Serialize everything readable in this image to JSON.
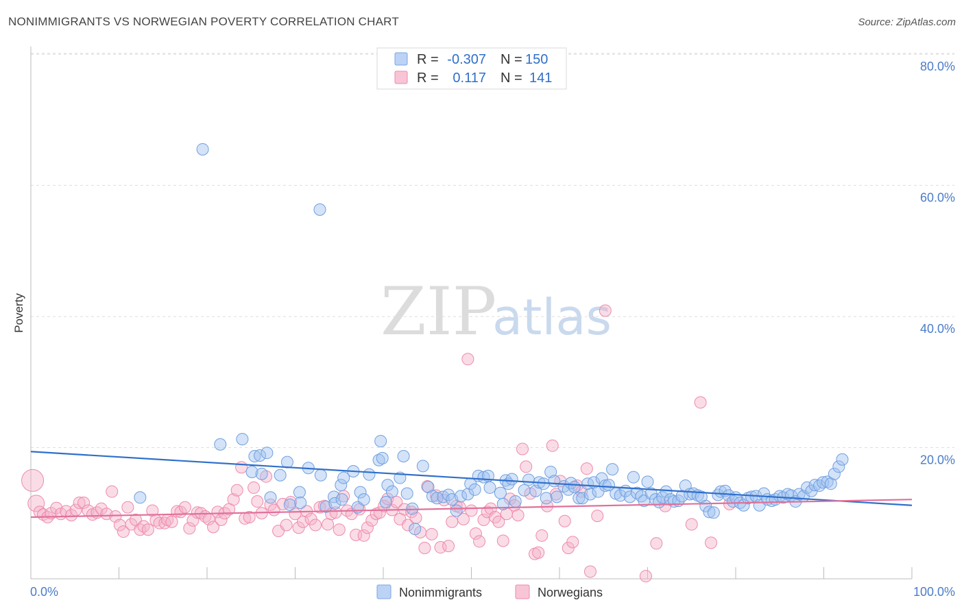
{
  "title": "NONIMMIGRANTS VS NORWEGIAN POVERTY CORRELATION CHART",
  "source": "Source: ZipAtlas.com",
  "watermark": {
    "zip": "ZIP",
    "atlas": "atlas"
  },
  "chart_data": {
    "type": "scatter",
    "xlabel": "",
    "ylabel": "Poverty",
    "xlim": [
      0,
      100
    ],
    "ylim": [
      0,
      82
    ],
    "x_tick_labels": [
      "0.0%",
      "100.0%"
    ],
    "y_ticks": [
      20,
      40,
      60,
      80
    ],
    "y_tick_labels": [
      "20.0%",
      "40.0%",
      "60.0%",
      "80.0%"
    ],
    "grid": true,
    "legend_placement": "top-center",
    "colors": {
      "Nonimmigrants": "#6f9fe0",
      "Norwegians": "#ee8aaa",
      "trend_blue": "#2f6fca",
      "trend_pink": "#e0709a"
    },
    "legend": [
      {
        "r_label": "R =",
        "r": "-0.307",
        "n_label": "N =",
        "n": "150"
      },
      {
        "r_label": "R =",
        "r": "0.117",
        "n_label": "N =",
        "n": "141"
      }
    ],
    "series": [
      {
        "name": "Nonimmigrants",
        "trend": [
          [
            0,
            19.4
          ],
          [
            100,
            11.2
          ]
        ],
        "points": [
          [
            19.5,
            65.5
          ],
          [
            32.8,
            56.3
          ],
          [
            12.4,
            12.4
          ],
          [
            21.5,
            20.5
          ],
          [
            24.0,
            21.3
          ],
          [
            25.1,
            16.3
          ],
          [
            25.4,
            18.7
          ],
          [
            26.0,
            18.8
          ],
          [
            26.2,
            16.0
          ],
          [
            26.8,
            19.2
          ],
          [
            27.2,
            12.4
          ],
          [
            28.3,
            15.8
          ],
          [
            29.1,
            17.8
          ],
          [
            29.4,
            11.3
          ],
          [
            30.5,
            13.2
          ],
          [
            30.6,
            11.6
          ],
          [
            31.5,
            16.9
          ],
          [
            32.9,
            15.8
          ],
          [
            33.5,
            11.0
          ],
          [
            34.4,
            12.5
          ],
          [
            34.5,
            11.5
          ],
          [
            35.2,
            14.3
          ],
          [
            35.5,
            15.4
          ],
          [
            35.3,
            12.1
          ],
          [
            36.6,
            16.4
          ],
          [
            37.1,
            10.9
          ],
          [
            37.4,
            13.2
          ],
          [
            37.8,
            12.1
          ],
          [
            38.4,
            15.9
          ],
          [
            39.7,
            21.0
          ],
          [
            39.5,
            18.1
          ],
          [
            39.9,
            18.4
          ],
          [
            40.5,
            14.3
          ],
          [
            40.3,
            11.7
          ],
          [
            41.0,
            13.3
          ],
          [
            41.9,
            15.4
          ],
          [
            42.3,
            18.7
          ],
          [
            42.7,
            13.0
          ],
          [
            43.3,
            10.7
          ],
          [
            43.6,
            7.6
          ],
          [
            44.5,
            17.2
          ],
          [
            45.1,
            14.0
          ],
          [
            45.6,
            12.6
          ],
          [
            46.1,
            12.3
          ],
          [
            46.8,
            12.5
          ],
          [
            47.4,
            12.8
          ],
          [
            47.8,
            12.1
          ],
          [
            48.3,
            10.4
          ],
          [
            48.8,
            12.6
          ],
          [
            49.6,
            12.9
          ],
          [
            49.9,
            14.5
          ],
          [
            50.4,
            13.6
          ],
          [
            50.8,
            15.7
          ],
          [
            51.4,
            15.5
          ],
          [
            51.9,
            15.7
          ],
          [
            52.1,
            13.9
          ],
          [
            53.3,
            13.1
          ],
          [
            53.6,
            11.4
          ],
          [
            53.9,
            15.0
          ],
          [
            54.2,
            14.5
          ],
          [
            54.6,
            15.2
          ],
          [
            55.0,
            11.8
          ],
          [
            56.0,
            13.5
          ],
          [
            56.5,
            15.1
          ],
          [
            57.3,
            13.4
          ],
          [
            57.7,
            14.7
          ],
          [
            58.2,
            14.5
          ],
          [
            58.5,
            12.3
          ],
          [
            59.0,
            16.3
          ],
          [
            59.4,
            14.9
          ],
          [
            59.7,
            12.5
          ],
          [
            60.5,
            14.1
          ],
          [
            61.0,
            13.6
          ],
          [
            61.3,
            14.6
          ],
          [
            61.7,
            14.0
          ],
          [
            62.2,
            12.3
          ],
          [
            62.6,
            12.3
          ],
          [
            63.2,
            14.5
          ],
          [
            63.5,
            12.9
          ],
          [
            63.9,
            14.7
          ],
          [
            64.4,
            13.3
          ],
          [
            64.8,
            15.3
          ],
          [
            65.2,
            14.2
          ],
          [
            65.6,
            14.3
          ],
          [
            66.0,
            16.7
          ],
          [
            66.4,
            13.0
          ],
          [
            66.9,
            12.7
          ],
          [
            67.5,
            13.4
          ],
          [
            68.0,
            12.5
          ],
          [
            68.4,
            15.5
          ],
          [
            68.8,
            13.1
          ],
          [
            69.3,
            12.6
          ],
          [
            69.6,
            11.9
          ],
          [
            70.0,
            14.8
          ],
          [
            70.4,
            13.0
          ],
          [
            70.9,
            12.1
          ],
          [
            71.3,
            11.7
          ],
          [
            71.7,
            12.4
          ],
          [
            72.1,
            13.3
          ],
          [
            72.6,
            12.1
          ],
          [
            73.0,
            11.8
          ],
          [
            73.5,
            11.9
          ],
          [
            73.9,
            12.6
          ],
          [
            74.3,
            14.2
          ],
          [
            74.8,
            12.9
          ],
          [
            75.2,
            13.0
          ],
          [
            75.7,
            12.7
          ],
          [
            76.1,
            12.5
          ],
          [
            76.6,
            11.1
          ],
          [
            77.0,
            10.2
          ],
          [
            77.5,
            10.1
          ],
          [
            78.0,
            12.8
          ],
          [
            78.3,
            13.3
          ],
          [
            78.8,
            13.4
          ],
          [
            79.2,
            12.7
          ],
          [
            79.7,
            11.8
          ],
          [
            80.0,
            12.4
          ],
          [
            80.5,
            11.6
          ],
          [
            80.9,
            11.2
          ],
          [
            81.4,
            12.3
          ],
          [
            81.8,
            12.5
          ],
          [
            82.3,
            12.6
          ],
          [
            82.7,
            11.2
          ],
          [
            83.2,
            13.0
          ],
          [
            83.6,
            12.1
          ],
          [
            84.1,
            11.9
          ],
          [
            84.5,
            12.1
          ],
          [
            85.0,
            12.6
          ],
          [
            85.4,
            12.4
          ],
          [
            85.9,
            12.9
          ],
          [
            86.3,
            12.7
          ],
          [
            86.8,
            11.8
          ],
          [
            87.2,
            12.9
          ],
          [
            87.7,
            12.6
          ],
          [
            88.1,
            13.9
          ],
          [
            88.6,
            13.4
          ],
          [
            89.0,
            14.3
          ],
          [
            89.5,
            14.2
          ],
          [
            89.9,
            14.7
          ],
          [
            90.4,
            14.8
          ],
          [
            90.8,
            14.5
          ],
          [
            91.2,
            16.0
          ],
          [
            91.7,
            17.1
          ],
          [
            92.1,
            18.2
          ]
        ]
      },
      {
        "name": "Norwegians",
        "trend": [
          [
            0,
            9.4
          ],
          [
            100,
            12.1
          ]
        ],
        "points": [
          [
            0.2,
            15.0
          ],
          [
            0.6,
            11.5
          ],
          [
            1.0,
            10.2
          ],
          [
            1.4,
            9.8
          ],
          [
            1.9,
            9.4
          ],
          [
            2.3,
            10.0
          ],
          [
            2.9,
            10.8
          ],
          [
            3.4,
            9.9
          ],
          [
            4.0,
            10.3
          ],
          [
            4.6,
            9.7
          ],
          [
            5.1,
            10.5
          ],
          [
            5.5,
            11.6
          ],
          [
            6.0,
            11.6
          ],
          [
            6.5,
            10.4
          ],
          [
            7.0,
            9.8
          ],
          [
            7.5,
            10.1
          ],
          [
            8.0,
            10.7
          ],
          [
            8.6,
            9.9
          ],
          [
            9.2,
            13.3
          ],
          [
            9.6,
            9.5
          ],
          [
            10.1,
            8.2
          ],
          [
            10.5,
            7.2
          ],
          [
            11.0,
            10.9
          ],
          [
            11.4,
            8.3
          ],
          [
            11.9,
            9.0
          ],
          [
            12.4,
            7.5
          ],
          [
            12.8,
            8.0
          ],
          [
            13.3,
            7.5
          ],
          [
            13.8,
            10.4
          ],
          [
            14.2,
            8.9
          ],
          [
            14.6,
            8.5
          ],
          [
            15.2,
            8.5
          ],
          [
            15.5,
            9.0
          ],
          [
            16.0,
            8.7
          ],
          [
            16.6,
            10.3
          ],
          [
            17.0,
            10.2
          ],
          [
            17.5,
            10.9
          ],
          [
            18.0,
            7.7
          ],
          [
            18.4,
            8.9
          ],
          [
            18.9,
            10.1
          ],
          [
            19.3,
            10.0
          ],
          [
            19.8,
            9.5
          ],
          [
            20.2,
            9.1
          ],
          [
            20.7,
            7.9
          ],
          [
            21.2,
            10.2
          ],
          [
            21.6,
            9.0
          ],
          [
            22.0,
            10.0
          ],
          [
            22.5,
            10.6
          ],
          [
            23.0,
            12.1
          ],
          [
            23.4,
            13.5
          ],
          [
            23.9,
            17.0
          ],
          [
            24.3,
            9.2
          ],
          [
            24.8,
            9.4
          ],
          [
            25.3,
            13.9
          ],
          [
            25.7,
            11.8
          ],
          [
            26.2,
            10.0
          ],
          [
            26.7,
            15.6
          ],
          [
            27.2,
            11.3
          ],
          [
            27.6,
            10.5
          ],
          [
            28.1,
            7.3
          ],
          [
            28.6,
            11.4
          ],
          [
            29.0,
            8.2
          ],
          [
            29.5,
            11.7
          ],
          [
            30.0,
            9.9
          ],
          [
            30.4,
            7.8
          ],
          [
            30.9,
            8.7
          ],
          [
            31.3,
            10.3
          ],
          [
            31.8,
            9.1
          ],
          [
            32.3,
            8.2
          ],
          [
            32.8,
            10.9
          ],
          [
            33.3,
            11.1
          ],
          [
            33.7,
            8.3
          ],
          [
            34.1,
            9.9
          ],
          [
            34.6,
            10.1
          ],
          [
            35.0,
            7.5
          ],
          [
            35.5,
            12.6
          ],
          [
            35.9,
            10.4
          ],
          [
            36.4,
            9.9
          ],
          [
            36.9,
            6.7
          ],
          [
            37.3,
            10.6
          ],
          [
            37.8,
            6.6
          ],
          [
            38.2,
            7.8
          ],
          [
            38.7,
            8.9
          ],
          [
            39.2,
            9.9
          ],
          [
            39.6,
            10.1
          ],
          [
            40.1,
            11.1
          ],
          [
            40.5,
            12.2
          ],
          [
            41.0,
            10.5
          ],
          [
            41.5,
            11.7
          ],
          [
            41.9,
            9.1
          ],
          [
            42.4,
            10.6
          ],
          [
            42.8,
            8.2
          ],
          [
            43.2,
            10.2
          ],
          [
            43.7,
            9.3
          ],
          [
            44.2,
            7.1
          ],
          [
            44.7,
            4.7
          ],
          [
            45.0,
            14.1
          ],
          [
            45.5,
            6.8
          ],
          [
            46.0,
            12.7
          ],
          [
            46.5,
            4.8
          ],
          [
            46.9,
            12.0
          ],
          [
            47.4,
            5.0
          ],
          [
            47.8,
            8.7
          ],
          [
            48.3,
            11.1
          ],
          [
            48.7,
            10.9
          ],
          [
            49.1,
            9.1
          ],
          [
            49.6,
            33.5
          ],
          [
            50.0,
            10.4
          ],
          [
            50.5,
            6.9
          ],
          [
            50.9,
            5.7
          ],
          [
            51.4,
            9.0
          ],
          [
            51.8,
            10.2
          ],
          [
            52.2,
            10.7
          ],
          [
            52.7,
            9.4
          ],
          [
            53.1,
            8.7
          ],
          [
            53.6,
            5.8
          ],
          [
            54.0,
            9.9
          ],
          [
            54.4,
            12.2
          ],
          [
            54.9,
            11.2
          ],
          [
            55.3,
            9.7
          ],
          [
            55.8,
            19.8
          ],
          [
            56.2,
            17.1
          ],
          [
            56.7,
            13.0
          ],
          [
            57.2,
            3.8
          ],
          [
            57.6,
            4.0
          ],
          [
            58.0,
            6.6
          ],
          [
            58.6,
            11.1
          ],
          [
            59.2,
            20.3
          ],
          [
            59.6,
            12.9
          ],
          [
            60.1,
            14.9
          ],
          [
            60.6,
            8.8
          ],
          [
            61.0,
            4.7
          ],
          [
            61.5,
            5.6
          ],
          [
            62.0,
            14.2
          ],
          [
            62.5,
            13.3
          ],
          [
            63.1,
            16.8
          ],
          [
            63.5,
            1.1
          ],
          [
            64.3,
            9.6
          ],
          [
            65.2,
            40.9
          ],
          [
            69.8,
            0.4
          ],
          [
            71.0,
            5.4
          ],
          [
            72.0,
            11.1
          ],
          [
            75.0,
            8.3
          ],
          [
            76.0,
            26.9
          ],
          [
            77.2,
            5.5
          ],
          [
            79.3,
            11.4
          ]
        ]
      }
    ]
  },
  "bottom_legend": [
    "Nonimmigrants",
    "Norwegians"
  ]
}
